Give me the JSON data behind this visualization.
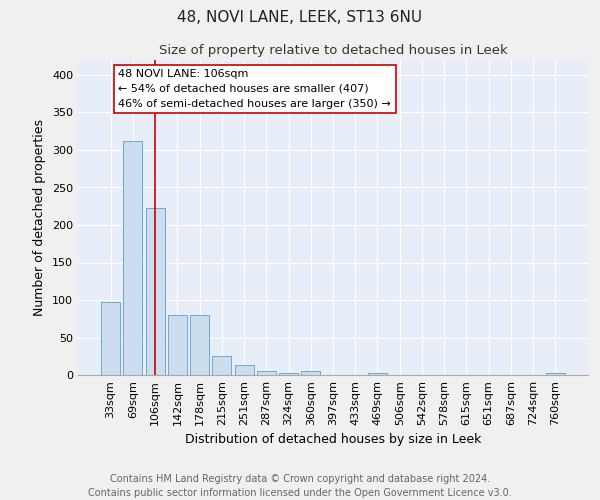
{
  "title": "48, NOVI LANE, LEEK, ST13 6NU",
  "subtitle": "Size of property relative to detached houses in Leek",
  "xlabel": "Distribution of detached houses by size in Leek",
  "ylabel": "Number of detached properties",
  "categories": [
    "33sqm",
    "69sqm",
    "106sqm",
    "142sqm",
    "178sqm",
    "215sqm",
    "251sqm",
    "287sqm",
    "324sqm",
    "360sqm",
    "397sqm",
    "433sqm",
    "469sqm",
    "506sqm",
    "542sqm",
    "578sqm",
    "615sqm",
    "651sqm",
    "687sqm",
    "724sqm",
    "760sqm"
  ],
  "values": [
    97,
    312,
    222,
    80,
    80,
    26,
    13,
    5,
    3,
    6,
    0,
    0,
    3,
    0,
    0,
    0,
    0,
    0,
    0,
    0,
    3
  ],
  "bar_color": "#ccddf0",
  "bar_edge_color": "#6aaad4",
  "red_line_index": 2,
  "annotation_line1": "48 NOVI LANE: 106sqm",
  "annotation_line2": "← 54% of detached houses are smaller (407)",
  "annotation_line3": "46% of semi-detached houses are larger (350) →",
  "annotation_box_color": "#ffffff",
  "annotation_box_edge_color": "#cc0000",
  "red_line_color": "#cc0000",
  "background_color": "#e8eef8",
  "grid_color": "#ffffff",
  "fig_background": "#f0f0f0",
  "footnote": "Contains HM Land Registry data © Crown copyright and database right 2024.\nContains public sector information licensed under the Open Government Licence v3.0.",
  "ylim": [
    0,
    420
  ],
  "yticks": [
    0,
    50,
    100,
    150,
    200,
    250,
    300,
    350,
    400
  ],
  "title_fontsize": 11,
  "subtitle_fontsize": 9.5,
  "xlabel_fontsize": 9,
  "ylabel_fontsize": 9,
  "tick_fontsize": 8,
  "annotation_fontsize": 8,
  "footnote_fontsize": 7
}
